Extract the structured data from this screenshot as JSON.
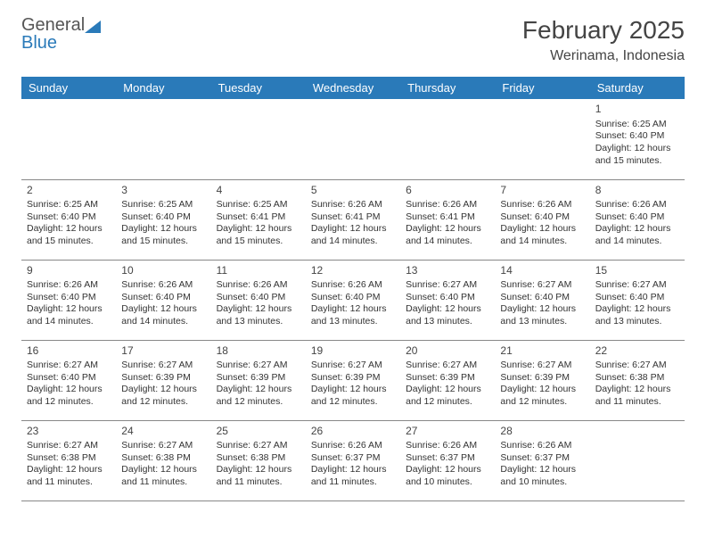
{
  "logo": {
    "text1": "General",
    "text2": "Blue"
  },
  "title": "February 2025",
  "location": "Werinama, Indonesia",
  "style": {
    "header_bg": "#2a7ab9",
    "header_fg": "#ffffff",
    "border_color": "#888888",
    "month_fontsize": 28,
    "location_fontsize": 16,
    "day_header_fontsize": 13,
    "cell_fontsize": 10.5,
    "daynum_fontsize": 12,
    "page_bg": "#ffffff"
  },
  "day_headers": [
    "Sunday",
    "Monday",
    "Tuesday",
    "Wednesday",
    "Thursday",
    "Friday",
    "Saturday"
  ],
  "weeks": [
    [
      null,
      null,
      null,
      null,
      null,
      null,
      {
        "n": "1",
        "sunrise": "6:25 AM",
        "sunset": "6:40 PM",
        "daylight": "12 hours and 15 minutes."
      }
    ],
    [
      {
        "n": "2",
        "sunrise": "6:25 AM",
        "sunset": "6:40 PM",
        "daylight": "12 hours and 15 minutes."
      },
      {
        "n": "3",
        "sunrise": "6:25 AM",
        "sunset": "6:40 PM",
        "daylight": "12 hours and 15 minutes."
      },
      {
        "n": "4",
        "sunrise": "6:25 AM",
        "sunset": "6:41 PM",
        "daylight": "12 hours and 15 minutes."
      },
      {
        "n": "5",
        "sunrise": "6:26 AM",
        "sunset": "6:41 PM",
        "daylight": "12 hours and 14 minutes."
      },
      {
        "n": "6",
        "sunrise": "6:26 AM",
        "sunset": "6:41 PM",
        "daylight": "12 hours and 14 minutes."
      },
      {
        "n": "7",
        "sunrise": "6:26 AM",
        "sunset": "6:40 PM",
        "daylight": "12 hours and 14 minutes."
      },
      {
        "n": "8",
        "sunrise": "6:26 AM",
        "sunset": "6:40 PM",
        "daylight": "12 hours and 14 minutes."
      }
    ],
    [
      {
        "n": "9",
        "sunrise": "6:26 AM",
        "sunset": "6:40 PM",
        "daylight": "12 hours and 14 minutes."
      },
      {
        "n": "10",
        "sunrise": "6:26 AM",
        "sunset": "6:40 PM",
        "daylight": "12 hours and 14 minutes."
      },
      {
        "n": "11",
        "sunrise": "6:26 AM",
        "sunset": "6:40 PM",
        "daylight": "12 hours and 13 minutes."
      },
      {
        "n": "12",
        "sunrise": "6:26 AM",
        "sunset": "6:40 PM",
        "daylight": "12 hours and 13 minutes."
      },
      {
        "n": "13",
        "sunrise": "6:27 AM",
        "sunset": "6:40 PM",
        "daylight": "12 hours and 13 minutes."
      },
      {
        "n": "14",
        "sunrise": "6:27 AM",
        "sunset": "6:40 PM",
        "daylight": "12 hours and 13 minutes."
      },
      {
        "n": "15",
        "sunrise": "6:27 AM",
        "sunset": "6:40 PM",
        "daylight": "12 hours and 13 minutes."
      }
    ],
    [
      {
        "n": "16",
        "sunrise": "6:27 AM",
        "sunset": "6:40 PM",
        "daylight": "12 hours and 12 minutes."
      },
      {
        "n": "17",
        "sunrise": "6:27 AM",
        "sunset": "6:39 PM",
        "daylight": "12 hours and 12 minutes."
      },
      {
        "n": "18",
        "sunrise": "6:27 AM",
        "sunset": "6:39 PM",
        "daylight": "12 hours and 12 minutes."
      },
      {
        "n": "19",
        "sunrise": "6:27 AM",
        "sunset": "6:39 PM",
        "daylight": "12 hours and 12 minutes."
      },
      {
        "n": "20",
        "sunrise": "6:27 AM",
        "sunset": "6:39 PM",
        "daylight": "12 hours and 12 minutes."
      },
      {
        "n": "21",
        "sunrise": "6:27 AM",
        "sunset": "6:39 PM",
        "daylight": "12 hours and 12 minutes."
      },
      {
        "n": "22",
        "sunrise": "6:27 AM",
        "sunset": "6:38 PM",
        "daylight": "12 hours and 11 minutes."
      }
    ],
    [
      {
        "n": "23",
        "sunrise": "6:27 AM",
        "sunset": "6:38 PM",
        "daylight": "12 hours and 11 minutes."
      },
      {
        "n": "24",
        "sunrise": "6:27 AM",
        "sunset": "6:38 PM",
        "daylight": "12 hours and 11 minutes."
      },
      {
        "n": "25",
        "sunrise": "6:27 AM",
        "sunset": "6:38 PM",
        "daylight": "12 hours and 11 minutes."
      },
      {
        "n": "26",
        "sunrise": "6:26 AM",
        "sunset": "6:37 PM",
        "daylight": "12 hours and 11 minutes."
      },
      {
        "n": "27",
        "sunrise": "6:26 AM",
        "sunset": "6:37 PM",
        "daylight": "12 hours and 10 minutes."
      },
      {
        "n": "28",
        "sunrise": "6:26 AM",
        "sunset": "6:37 PM",
        "daylight": "12 hours and 10 minutes."
      },
      null
    ]
  ],
  "labels": {
    "sunrise": "Sunrise:",
    "sunset": "Sunset:",
    "daylight": "Daylight:"
  }
}
